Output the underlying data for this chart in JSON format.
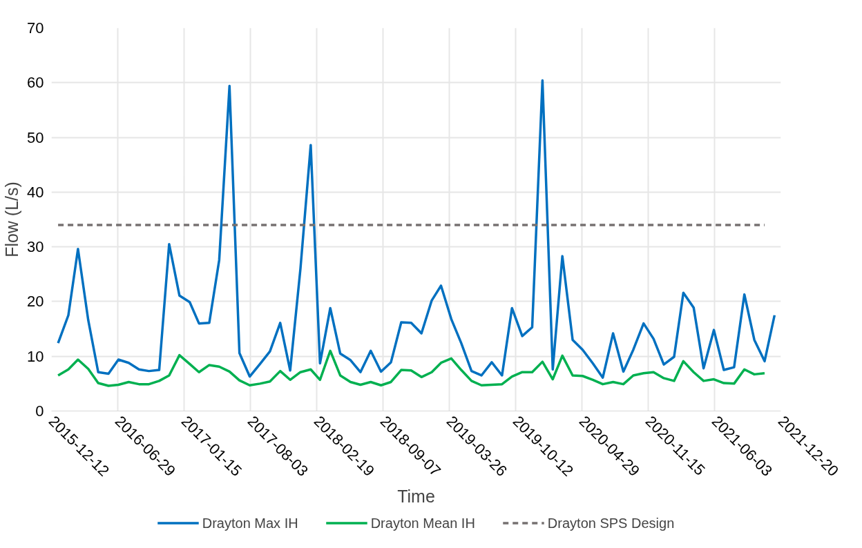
{
  "chart_data": {
    "type": "line",
    "xlabel": "Time",
    "ylabel": "Flow (L/s)",
    "x": [
      "2016-01",
      "2016-02",
      "2016-03",
      "2016-04",
      "2016-05",
      "2016-06",
      "2016-07",
      "2016-08",
      "2016-09",
      "2016-10",
      "2016-11",
      "2016-12",
      "2017-01",
      "2017-02",
      "2017-03",
      "2017-04",
      "2017-05",
      "2017-06",
      "2017-07",
      "2017-08",
      "2017-09",
      "2017-10",
      "2017-11",
      "2017-12",
      "2018-01",
      "2018-02",
      "2018-03",
      "2018-04",
      "2018-05",
      "2018-06",
      "2018-07",
      "2018-08",
      "2018-09",
      "2018-10",
      "2018-11",
      "2018-12",
      "2019-01",
      "2019-02",
      "2019-03",
      "2019-04",
      "2019-05",
      "2019-06",
      "2019-07",
      "2019-08",
      "2019-09",
      "2019-10",
      "2019-11",
      "2019-12",
      "2020-01",
      "2020-02",
      "2020-03",
      "2020-04",
      "2020-05",
      "2020-06",
      "2020-07",
      "2020-08",
      "2020-09",
      "2020-10",
      "2020-11",
      "2020-12",
      "2021-01",
      "2021-02",
      "2021-03",
      "2021-04",
      "2021-05",
      "2021-06",
      "2021-07",
      "2021-08",
      "2021-09",
      "2021-10",
      "2021-11",
      "2021-12"
    ],
    "series": [
      {
        "name": "Drayton Max IH",
        "color": "#0070c0",
        "values": [
          12.4,
          17.5,
          29.6,
          16.6,
          7.1,
          6.8,
          9.4,
          8.8,
          7.6,
          7.3,
          7.5,
          30.5,
          21.1,
          19.9,
          16.0,
          16.1,
          27.6,
          59.4,
          10.6,
          6.3,
          8.6,
          10.9,
          16.1,
          7.4,
          26,
          48.6,
          8.7,
          18.8,
          10.5,
          9.3,
          7.1,
          11.0,
          7.2,
          8.9,
          16.2,
          16.1,
          14.2,
          20.2,
          22.9,
          16.8,
          12.4,
          7.3,
          6.5,
          8.9,
          6.5,
          18.8,
          13.7,
          15.3,
          60.4,
          7.6,
          28.3,
          13.0,
          11.2,
          8.7,
          6.1,
          14.2,
          7.2,
          11.2,
          16.0,
          13.2,
          8.5,
          9.9,
          21.6,
          18.9,
          7.8,
          14.8,
          7.5,
          8.0,
          21.3,
          13.0,
          9.1,
          17.5
        ]
      },
      {
        "name": "Drayton Mean IH",
        "color": "#00b050",
        "values": [
          6.5,
          7.6,
          9.4,
          7.7,
          5.1,
          4.6,
          4.8,
          5.3,
          4.9,
          4.9,
          5.5,
          6.5,
          10.2,
          8.6,
          7.1,
          8.4,
          8.1,
          7.2,
          5.6,
          4.7,
          5.0,
          5.4,
          7.3,
          5.7,
          7.1,
          7.6,
          5.7,
          11.0,
          6.5,
          5.3,
          4.8,
          5.3,
          4.7,
          5.3,
          7.5,
          7.4,
          6.2,
          7.1,
          8.8,
          9.6,
          7.5,
          5.5,
          4.7,
          4.8,
          4.9,
          6.3,
          7.1,
          7.1,
          9.0,
          5.8,
          10.1,
          6.5,
          6.4,
          5.7,
          4.9,
          5.3,
          4.9,
          6.5,
          6.9,
          7.1,
          6.0,
          5.5,
          9.1,
          7.1,
          5.5,
          5.8,
          5.1,
          5.0,
          7.6,
          6.7,
          6.9,
          null
        ]
      },
      {
        "name": "Drayton SPS Design",
        "color": "#767171",
        "line_style": "dashed",
        "x": [
          "2016-01",
          "2021-11"
        ],
        "values": [
          34,
          34
        ]
      }
    ],
    "xlim": [
      "2015-12-12",
      "2021-12-20"
    ],
    "xticks": [
      "2015-12-12",
      "2016-06-29",
      "2017-01-15",
      "2017-08-03",
      "2018-02-19",
      "2018-09-07",
      "2019-03-26",
      "2019-10-12",
      "2020-04-29",
      "2020-11-15",
      "2021-06-03",
      "2021-12-20"
    ],
    "ylim": [
      0,
      70
    ],
    "yticks": [
      0,
      10,
      20,
      30,
      40,
      50,
      60,
      70
    ],
    "grid": true,
    "legend": "bottom",
    "line_style": "solid",
    "marker": "none"
  }
}
